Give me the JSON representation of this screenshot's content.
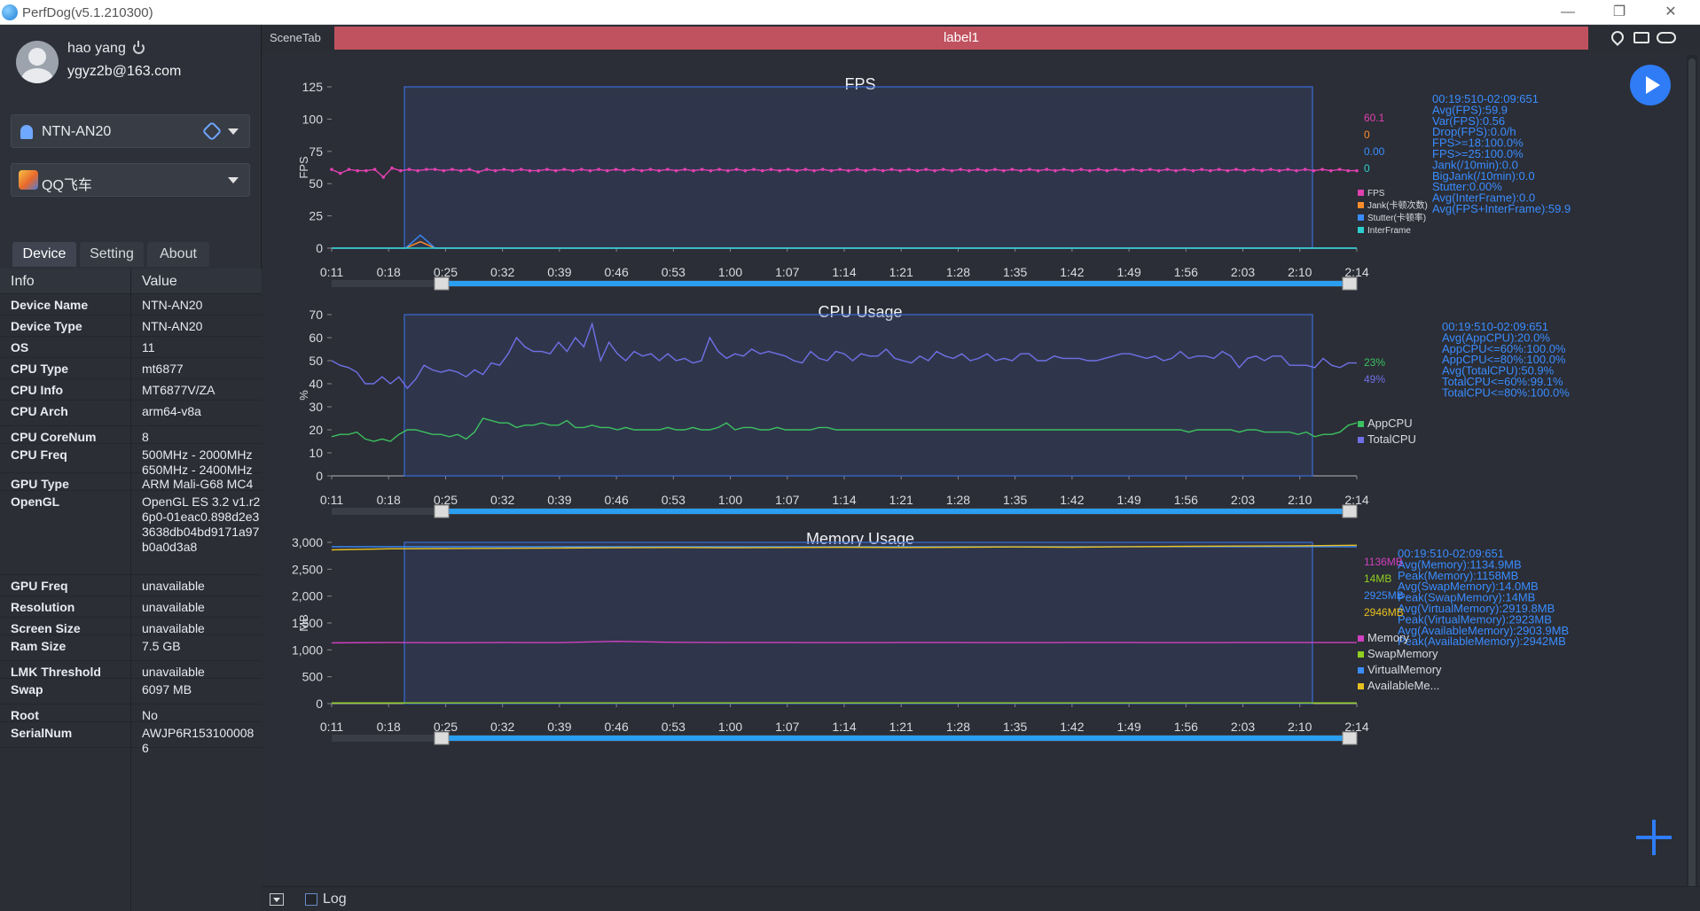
{
  "window": {
    "title": "PerfDog(v5.1.210300)",
    "controls": [
      "minimize",
      "restore",
      "close"
    ]
  },
  "user": {
    "name": "hao yang",
    "email": "ygyz2b@163.com"
  },
  "device_select": {
    "value": "NTN-AN20"
  },
  "app_select": {
    "value": "QQ飞车"
  },
  "tabs": [
    {
      "label": "Device"
    },
    {
      "label": "Setting"
    },
    {
      "label": "About"
    }
  ],
  "info_table": {
    "headers": {
      "info": "Info",
      "value": "Value"
    },
    "rows": [
      {
        "k": "Device Name",
        "v": "NTN-AN20"
      },
      {
        "k": "Device Type",
        "v": "NTN-AN20"
      },
      {
        "k": "OS",
        "v": "11"
      },
      {
        "k": "CPU Type",
        "v": "mt6877"
      },
      {
        "k": "CPU Info",
        "v": "MT6877V/ZA"
      },
      {
        "k": "CPU Arch",
        "v": "arm64-v8a"
      },
      {
        "k": "CPU CoreNum",
        "v": "8"
      },
      {
        "k": "CPU Freq",
        "v": "500MHz - 2000MHz 650MHz - 2400MHz"
      },
      {
        "k": "GPU Type",
        "v": "ARM Mali-G68 MC4"
      },
      {
        "k": "OpenGL",
        "v": "OpenGL ES 3.2 v1.r26p0-01eac0.898d2e33638db04bd9171a97b0a0d3a8"
      },
      {
        "k": "GPU Freq",
        "v": "unavailable"
      },
      {
        "k": "Resolution",
        "v": "unavailable"
      },
      {
        "k": "Screen Size",
        "v": "unavailable"
      },
      {
        "k": "Ram Size",
        "v": "7.5 GB"
      },
      {
        "k": "LMK Threshold",
        "v": "unavailable"
      },
      {
        "k": "Swap",
        "v": "6097 MB"
      },
      {
        "k": "Root",
        "v": "No"
      },
      {
        "k": "SerialNum",
        "v": "AWJP6R1531000086"
      }
    ]
  },
  "scene": {
    "tab_label": "SceneTab",
    "label": "label1"
  },
  "bottom": {
    "log_label": "Log"
  },
  "colors": {
    "accent": "#2f7cf6",
    "label_bar": "#c0525f",
    "fps": "#e040b0",
    "jank": "#ff8c2a",
    "stutter": "#3a8cff",
    "interframe": "#2ad0d0",
    "appcpu": "#3cc060",
    "totalcpu": "#7070e8",
    "memory": "#d040c0",
    "swap": "#90d020",
    "virtual": "#3a8cff",
    "available": "#e8c020"
  },
  "chart_data": [
    {
      "type": "line",
      "title": "FPS",
      "ylabel": "FPS",
      "ylim": [
        0,
        125
      ],
      "yticks": [
        "0",
        "25",
        "50",
        "75",
        "100",
        "125"
      ],
      "xticks": [
        "0:11",
        "0:18",
        "0:25",
        "0:32",
        "0:39",
        "0:46",
        "0:53",
        "1:00",
        "1:07",
        "1:14",
        "1:21",
        "1:28",
        "1:35",
        "1:42",
        "1:49",
        "1:56",
        "2:03",
        "2:10",
        "2:14"
      ],
      "legend": [
        "FPS",
        "Jank(卡顿次数)",
        "Stutter(卡顿率)",
        "InterFrame"
      ],
      "current_values": [
        "60.1",
        "0",
        "0.00",
        "0"
      ],
      "stats": [
        "00:19:510-02:09:651",
        "Avg(FPS):59.9",
        "Var(FPS):0.56",
        "Drop(FPS):0.0/h",
        "FPS>=18:100.0%",
        "FPS>=25:100.0%",
        "Jank(/10min):0.0",
        "BigJank(/10min):0.0",
        "Stutter:0.00%",
        "Avg(InterFrame):0.0",
        "Avg(FPS+InterFrame):59.9"
      ],
      "series": [
        {
          "name": "FPS",
          "values": [
            61,
            58,
            61,
            60,
            60,
            61,
            55,
            62,
            60,
            61,
            60,
            61,
            61,
            60,
            61,
            60,
            61,
            59,
            61,
            60,
            61,
            60,
            61,
            60,
            60,
            61,
            60,
            61,
            60,
            61,
            60,
            61,
            60,
            61,
            60,
            61,
            60,
            61,
            60,
            61,
            60,
            61,
            60,
            61,
            60,
            61,
            60,
            61,
            60,
            61,
            60,
            61,
            60,
            61,
            60,
            61,
            60,
            61,
            60,
            61,
            60,
            61,
            60,
            61,
            60,
            61,
            60,
            61,
            60,
            61,
            60,
            61,
            60,
            61,
            60,
            61,
            60,
            61,
            60,
            61,
            60,
            61,
            60,
            61,
            60,
            61,
            60,
            61,
            60,
            61,
            60,
            61,
            60,
            61,
            60,
            61,
            60,
            61,
            60,
            61,
            60,
            61,
            60,
            61,
            60,
            61,
            60,
            61,
            60,
            61,
            60,
            61,
            60,
            61,
            60,
            61,
            60,
            61,
            60,
            60
          ]
        },
        {
          "name": "Jank",
          "values": [
            0,
            0,
            0,
            0,
            0,
            0,
            5,
            0,
            0,
            0
          ]
        },
        {
          "name": "Stutter",
          "values": [
            0,
            0,
            0,
            0,
            0,
            0,
            10,
            0,
            0,
            0
          ]
        },
        {
          "name": "InterFrame",
          "values": [
            0,
            0,
            0,
            0,
            0,
            0,
            0,
            0,
            0,
            0
          ]
        }
      ]
    },
    {
      "type": "line",
      "title": "CPU Usage",
      "ylabel": "%",
      "ylim": [
        0,
        70
      ],
      "yticks": [
        "0",
        "10",
        "20",
        "30",
        "40",
        "50",
        "60",
        "70"
      ],
      "xticks": [
        "0:11",
        "0:18",
        "0:25",
        "0:32",
        "0:39",
        "0:46",
        "0:53",
        "1:00",
        "1:07",
        "1:14",
        "1:21",
        "1:28",
        "1:35",
        "1:42",
        "1:49",
        "1:56",
        "2:03",
        "2:10",
        "2:14"
      ],
      "legend": [
        "AppCPU",
        "TotalCPU"
      ],
      "current_values": [
        "23%",
        "49%"
      ],
      "stats": [
        "00:19:510-02:09:651",
        "Avg(AppCPU):20.0%",
        "AppCPU<=60%:100.0%",
        "AppCPU<=80%:100.0%",
        "Avg(TotalCPU):50.9%",
        "TotalCPU<=60%:99.1%",
        "TotalCPU<=80%:100.0%"
      ],
      "series": [
        {
          "name": "AppCPU",
          "values": [
            17,
            18,
            18,
            19,
            16,
            15,
            16,
            15,
            18,
            20,
            20,
            19,
            18,
            18,
            17,
            18,
            16,
            19,
            25,
            24,
            23,
            23,
            21,
            22,
            22,
            23,
            22,
            22,
            24,
            21,
            21,
            22,
            21,
            21,
            20,
            21,
            20,
            20,
            20,
            20,
            21,
            20,
            20,
            21,
            20,
            20,
            21,
            23,
            20,
            21,
            21,
            20,
            20,
            21,
            20,
            20,
            20,
            20,
            21,
            21,
            20,
            20,
            20,
            20,
            20,
            20,
            20,
            20,
            20,
            20,
            20,
            20,
            20,
            20,
            20,
            20,
            20,
            20,
            20,
            20,
            20,
            20,
            20,
            20,
            20,
            20,
            20,
            20,
            20,
            20,
            20,
            20,
            20,
            20,
            20,
            20,
            20,
            20,
            20,
            20,
            20,
            20,
            19,
            20,
            20,
            20,
            20,
            20,
            19,
            20,
            20,
            19,
            19,
            19,
            19,
            18,
            19,
            17,
            18,
            18,
            19,
            22,
            23
          ]
        },
        {
          "name": "TotalCPU",
          "values": [
            50,
            48,
            47,
            45,
            40,
            40,
            43,
            40,
            43,
            38,
            42,
            48,
            46,
            45,
            46,
            45,
            43,
            46,
            44,
            49,
            48,
            53,
            60,
            56,
            54,
            54,
            53,
            58,
            54,
            60,
            56,
            66,
            50,
            58,
            53,
            50,
            54,
            52,
            53,
            50,
            53,
            50,
            51,
            49,
            50,
            60,
            54,
            51,
            53,
            52,
            55,
            53,
            54,
            53,
            52,
            50,
            49,
            54,
            51,
            50,
            54,
            53,
            50,
            53,
            52,
            52,
            55,
            51,
            50,
            49,
            52,
            50,
            54,
            52,
            51,
            53,
            50,
            51,
            53,
            50,
            51,
            50,
            53,
            53,
            50,
            50,
            52,
            51,
            51,
            51,
            50,
            50,
            51,
            52,
            53,
            53,
            52,
            51,
            52,
            50,
            51,
            54,
            51,
            52,
            52,
            51,
            54,
            52,
            47,
            51,
            52,
            50,
            52,
            52,
            48,
            48,
            48,
            47,
            51,
            48,
            47,
            49,
            49
          ]
        }
      ]
    },
    {
      "type": "line",
      "title": "Memory Usage",
      "ylabel": "MB",
      "ylim": [
        0,
        3000
      ],
      "yticks": [
        "0",
        "500",
        "1,000",
        "1,500",
        "2,000",
        "2,500",
        "3,000"
      ],
      "xticks": [
        "0:11",
        "0:18",
        "0:25",
        "0:32",
        "0:39",
        "0:46",
        "0:53",
        "1:00",
        "1:07",
        "1:14",
        "1:21",
        "1:28",
        "1:35",
        "1:42",
        "1:49",
        "1:56",
        "2:03",
        "2:10",
        "2:14"
      ],
      "legend": [
        "Memory",
        "SwapMemory",
        "VirtualMemory",
        "AvailableMe..."
      ],
      "current_values": [
        "1136MB",
        "14MB",
        "2925MB",
        "2946MB"
      ],
      "stats": [
        "00:19:510-02:09:651",
        "Avg(Memory):1134.9MB",
        "Peak(Memory):1158MB",
        "Avg(SwapMemory):14.0MB",
        "Peak(SwapMemory):14MB",
        "Avg(VirtualMemory):2919.8MB",
        "Peak(VirtualMemory):2923MB",
        "Avg(AvailableMemory):2903.9MB",
        "Peak(AvailableMemory):2942MB"
      ],
      "series": [
        {
          "name": "Memory",
          "values": [
            1130,
            1135,
            1132,
            1136,
            1134,
            1158,
            1140,
            1135,
            1136,
            1134,
            1135,
            1136,
            1134,
            1136,
            1135,
            1134,
            1136,
            1135,
            1136
          ]
        },
        {
          "name": "SwapMemory",
          "values": [
            14,
            14,
            14,
            14,
            14,
            14,
            14,
            14,
            14,
            14,
            14,
            14,
            14,
            14,
            14,
            14,
            14,
            14,
            14
          ]
        },
        {
          "name": "VirtualMemory",
          "values": [
            2920,
            2920,
            2920,
            2920,
            2920,
            2920,
            2920,
            2920,
            2920,
            2920,
            2920,
            2920,
            2920,
            2920,
            2920,
            2920,
            2920,
            2920,
            2920
          ]
        },
        {
          "name": "AvailableMemory",
          "values": [
            2860,
            2880,
            2885,
            2890,
            2895,
            2900,
            2905,
            2900,
            2905,
            2910,
            2905,
            2910,
            2915,
            2910,
            2920,
            2925,
            2930,
            2935,
            2946
          ]
        }
      ]
    }
  ]
}
